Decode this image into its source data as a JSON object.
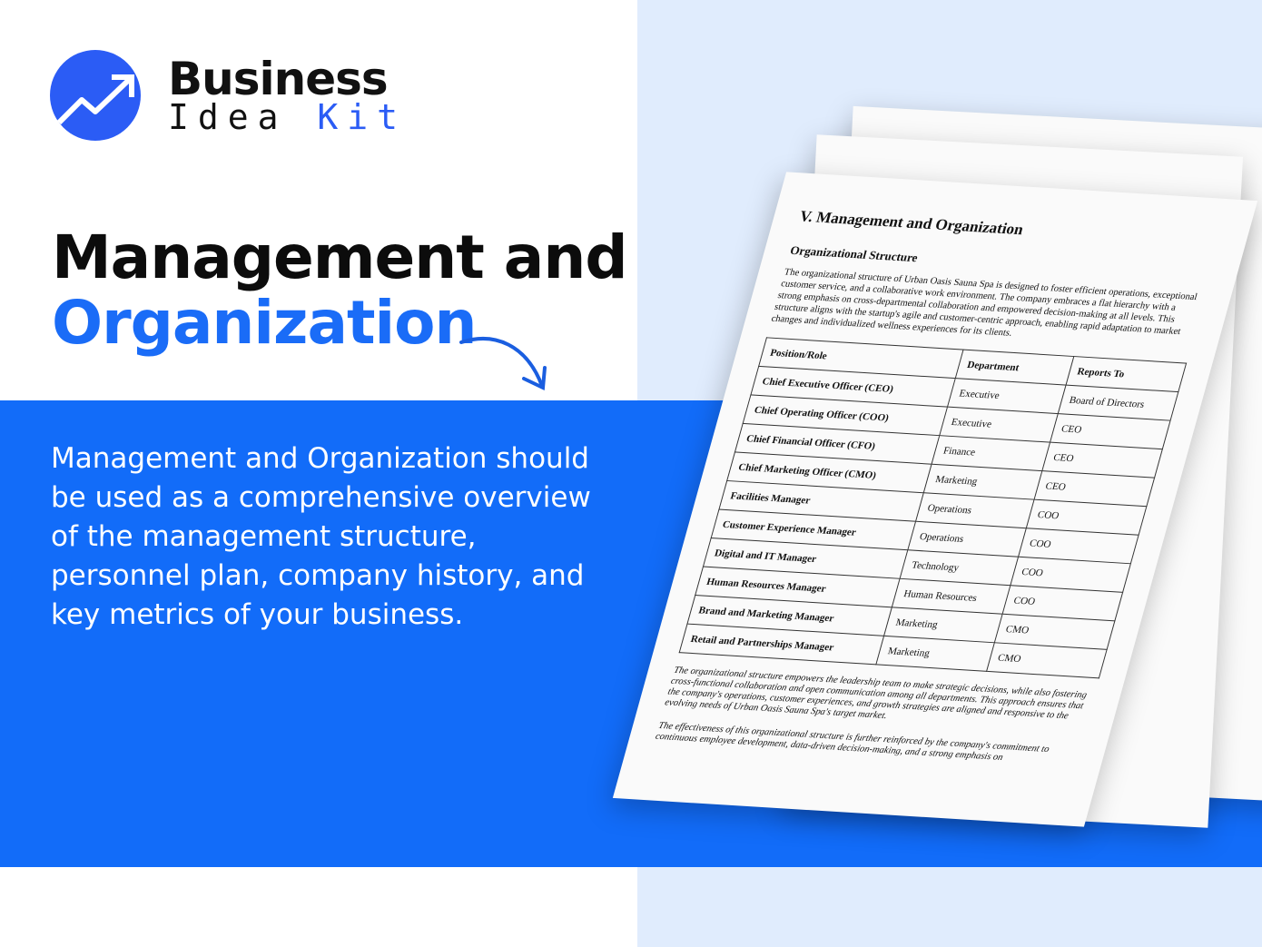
{
  "brand": {
    "line1": "Business",
    "line2a": "Idea",
    "line2b": "Kit",
    "accent": "#2b5cf5"
  },
  "title": {
    "line1": "Management and",
    "line2": "Organization"
  },
  "description": "Management and Organization should be used as a comprehensive overview of the management structure, personnel plan, company history, and key metrics of your business.",
  "document": {
    "heading": "V. Management and Organization",
    "subheading": "Organizational Structure",
    "intro": "The organizational structure of Urban Oasis Sauna Spa is designed to foster efficient operations, exceptional customer service, and a collaborative work environment. The company embraces a flat hierarchy with a strong emphasis on cross-departmental collaboration and empowered decision-making at all levels. This structure aligns with the startup's agile and customer-centric approach, enabling rapid adaptation to market changes and individualized wellness experiences for its clients.",
    "columns": [
      "Position/Role",
      "Department",
      "Reports To"
    ],
    "rows": [
      [
        "Chief Executive Officer (CEO)",
        "Executive",
        "Board of Directors"
      ],
      [
        "Chief Operating Officer (COO)",
        "Executive",
        "CEO"
      ],
      [
        "Chief Financial Officer (CFO)",
        "Finance",
        "CEO"
      ],
      [
        "Chief Marketing Officer (CMO)",
        "Marketing",
        "CEO"
      ],
      [
        "Facilities Manager",
        "Operations",
        "COO"
      ],
      [
        "Customer Experience Manager",
        "Operations",
        "COO"
      ],
      [
        "Digital and IT Manager",
        "Technology",
        "COO"
      ],
      [
        "Human Resources Manager",
        "Human Resources",
        "COO"
      ],
      [
        "Brand and Marketing Manager",
        "Marketing",
        "CMO"
      ],
      [
        "Retail and Partnerships Manager",
        "Marketing",
        "CMO"
      ]
    ],
    "para2": "The organizational structure empowers the leadership team to make strategic decisions, while also fostering cross-functional collaboration and open communication among all departments. This approach ensures that the company's operations, customer experiences, and growth strategies are aligned and responsive to the evolving needs of Urban Oasis Sauna Spa's target market.",
    "para3": "The effectiveness of this organizational structure is further reinforced by the company's commitment to continuous employee development, data-driven decision-making, and a strong emphasis on"
  }
}
